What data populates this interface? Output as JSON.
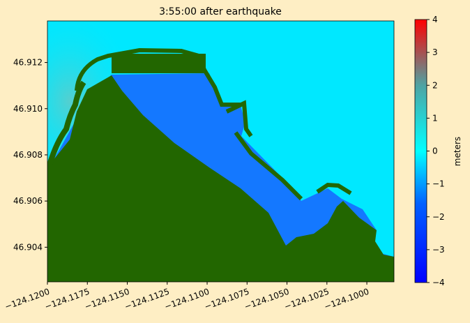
{
  "chart_data": {
    "type": "heatmap",
    "title": "3:55:00 after earthquake",
    "xlabel": "",
    "ylabel": "",
    "xlim": [
      -124.12,
      -124.0983
    ],
    "ylim": [
      46.9025,
      46.9138
    ],
    "x_ticks": [
      -124.12,
      -124.1175,
      -124.115,
      -124.1125,
      -124.11,
      -124.1075,
      -124.105,
      -124.1025,
      -124.1
    ],
    "x_tick_labels": [
      "−124.1200",
      "−124.1175",
      "−124.1150",
      "−124.1125",
      "−124.1100",
      "−124.1075",
      "−124.1050",
      "−124.1025",
      "−124.1000"
    ],
    "y_ticks": [
      46.904,
      46.906,
      46.908,
      46.91,
      46.912
    ],
    "y_tick_labels": [
      "46.904",
      "46.906",
      "46.908",
      "46.910",
      "46.912"
    ],
    "colorbar": {
      "label": "meters",
      "vmin": -4,
      "vmax": 4,
      "ticks": [
        -4,
        -3,
        -2,
        -1,
        0,
        1,
        2,
        3,
        4
      ],
      "tick_labels": [
        "−4",
        "−3",
        "−2",
        "−1",
        "0",
        "1",
        "2",
        "3",
        "4"
      ],
      "colormap": [
        "#0000ff",
        "#0060ff",
        "#00ffff",
        "#4fa3a3",
        "#ff0000"
      ]
    },
    "land_color": "#226600",
    "harbor_color": "#1478ff",
    "ocean_color": "#00e8ff"
  }
}
